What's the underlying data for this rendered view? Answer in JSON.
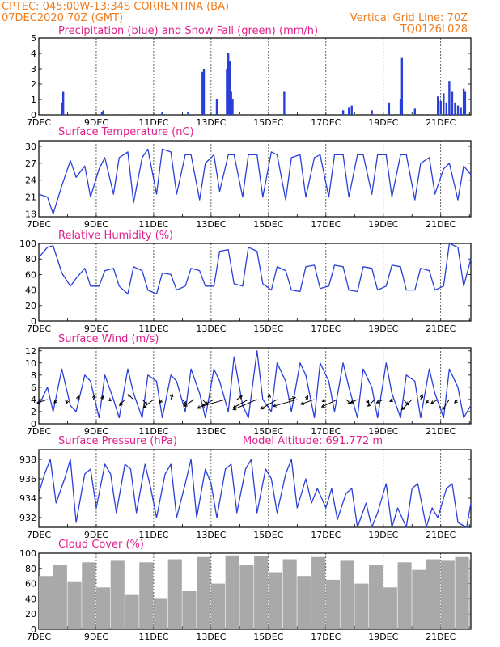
{
  "header": {
    "line1": "CPTEC:   045:00W-13:34S   CORRENTINA (BA)",
    "line2": "07DEC2020 70Z (GMT)",
    "grid_note": "Vertical Grid Line: 70Z",
    "code": "TQ0126L028"
  },
  "colors": {
    "header": "#f07c1e",
    "title": "#e0208c",
    "line": "#2a3fd8",
    "snow": "#22aa22",
    "cloud": "#a9a9a9",
    "axis": "#000000"
  },
  "x_axis": {
    "ticks": [
      {
        "label": "7DEC",
        "day": 7
      },
      {
        "label": "9DEC",
        "day": 9
      },
      {
        "label": "11DEC",
        "day": 11
      },
      {
        "label": "13DEC",
        "day": 13
      },
      {
        "label": "15DEC",
        "day": 15
      },
      {
        "label": "17DEC",
        "day": 17
      },
      {
        "label": "19DEC",
        "day": 19
      },
      {
        "label": "21DEC",
        "day": 21
      }
    ],
    "range": [
      7,
      22.05
    ]
  },
  "chart_data": [
    {
      "type": "bar",
      "title": "Precipitation (blue) and Snow Fall (green) (mm/h)",
      "ylim": [
        0,
        5
      ],
      "yticks": [
        "0",
        "1",
        "2",
        "3",
        "4",
        "5"
      ],
      "series": [
        {
          "name": "Precipitation",
          "x": [
            7.8,
            7.85,
            9.2,
            9.25,
            11.3,
            12.2,
            12.7,
            12.75,
            13.2,
            13.55,
            13.6,
            13.65,
            13.7,
            13.75,
            15.55,
            17.6,
            17.8,
            17.9,
            18.6,
            19.2,
            19.6,
            19.65,
            20.1,
            20.9,
            21.0,
            21.1,
            21.2,
            21.3,
            21.4,
            21.5,
            21.6,
            21.7,
            21.8,
            21.85
          ],
          "values": [
            0.8,
            1.5,
            0.2,
            0.3,
            0.2,
            0.2,
            2.8,
            3.0,
            1.0,
            3.0,
            4.0,
            3.5,
            1.5,
            1.0,
            1.5,
            0.3,
            0.5,
            0.6,
            0.3,
            0.8,
            1.0,
            3.7,
            0.4,
            1.2,
            0.9,
            1.4,
            0.8,
            2.2,
            1.5,
            0.8,
            0.6,
            0.5,
            1.7,
            1.5
          ]
        },
        {
          "name": "Snow Fall",
          "x": [
            7.5,
            8.5,
            10.0,
            11.5,
            14.0,
            16.5,
            18.0,
            20.0,
            21.0
          ],
          "values": [
            0.05,
            0.05,
            0.05,
            0.05,
            0.05,
            0.05,
            0.05,
            0.05,
            0.05
          ]
        }
      ]
    },
    {
      "type": "line",
      "title": "Surface Temperature (nC)",
      "ylim": [
        17.5,
        31
      ],
      "yticks": [
        "18",
        "21",
        "24",
        "27",
        "30"
      ],
      "series": [
        {
          "name": "Temperature",
          "x": [
            7,
            7.3,
            7.5,
            7.8,
            8.1,
            8.3,
            8.6,
            8.8,
            9.1,
            9.3,
            9.6,
            9.8,
            10.1,
            10.3,
            10.6,
            10.8,
            11.1,
            11.3,
            11.6,
            11.8,
            12.1,
            12.3,
            12.6,
            12.8,
            13.1,
            13.3,
            13.6,
            13.8,
            14.1,
            14.3,
            14.6,
            14.8,
            15.1,
            15.3,
            15.6,
            15.8,
            16.1,
            16.3,
            16.6,
            16.8,
            17.1,
            17.3,
            17.6,
            17.8,
            18.1,
            18.3,
            18.6,
            18.8,
            19.1,
            19.3,
            19.6,
            19.8,
            20.1,
            20.3,
            20.6,
            20.8,
            21.1,
            21.3,
            21.6,
            21.8,
            22.05
          ],
          "values": [
            21.5,
            21,
            18,
            23,
            27.5,
            24.5,
            26.5,
            21,
            26,
            28,
            21.5,
            28,
            29,
            20,
            28,
            29.5,
            21.5,
            29.5,
            29,
            21.5,
            28.5,
            28.5,
            20.5,
            27,
            28.5,
            22,
            28.5,
            28.5,
            21,
            28.5,
            28.5,
            21,
            29,
            28.5,
            20.5,
            28,
            28.5,
            21,
            28,
            28.5,
            21,
            28.5,
            28.5,
            21,
            28.5,
            28.5,
            21.5,
            28.5,
            28.5,
            21,
            28.5,
            28.5,
            20.5,
            27,
            28,
            21.5,
            26,
            27,
            20.5,
            26.5,
            25
          ]
        }
      ]
    },
    {
      "type": "line",
      "title": "Relative Humidity (%)",
      "ylim": [
        0,
        100
      ],
      "yticks": [
        "0",
        "20",
        "40",
        "60",
        "80",
        "100"
      ],
      "series": [
        {
          "name": "Relative Humidity",
          "x": [
            7,
            7.3,
            7.5,
            7.8,
            8.1,
            8.3,
            8.6,
            8.8,
            9.1,
            9.3,
            9.6,
            9.8,
            10.1,
            10.3,
            10.6,
            10.8,
            11.1,
            11.3,
            11.6,
            11.8,
            12.1,
            12.3,
            12.6,
            12.8,
            13.1,
            13.3,
            13.6,
            13.8,
            14.1,
            14.3,
            14.6,
            14.8,
            15.1,
            15.3,
            15.6,
            15.8,
            16.1,
            16.3,
            16.6,
            16.8,
            17.1,
            17.3,
            17.6,
            17.8,
            18.1,
            18.3,
            18.6,
            18.8,
            19.1,
            19.3,
            19.6,
            19.8,
            20.1,
            20.3,
            20.6,
            20.8,
            21.1,
            21.3,
            21.6,
            21.8,
            22.05
          ],
          "values": [
            82,
            95,
            97,
            62,
            45,
            55,
            68,
            45,
            45,
            65,
            68,
            45,
            35,
            70,
            65,
            40,
            35,
            62,
            60,
            40,
            45,
            68,
            65,
            45,
            45,
            90,
            92,
            48,
            45,
            95,
            90,
            48,
            40,
            70,
            65,
            40,
            38,
            70,
            72,
            42,
            45,
            72,
            70,
            40,
            38,
            70,
            68,
            40,
            45,
            72,
            70,
            40,
            40,
            68,
            65,
            40,
            45,
            100,
            95,
            45,
            80
          ]
        }
      ]
    },
    {
      "type": "line",
      "title": "Surface Wind (m/s)",
      "ylim": [
        0,
        12.5
      ],
      "yticks": [
        "0",
        "2",
        "4",
        "6",
        "8",
        "10",
        "12"
      ],
      "series": [
        {
          "name": "Wind Speed",
          "x": [
            7,
            7.3,
            7.5,
            7.8,
            8.1,
            8.3,
            8.6,
            8.8,
            9.1,
            9.3,
            9.6,
            9.8,
            10.1,
            10.3,
            10.6,
            10.8,
            11.1,
            11.3,
            11.6,
            11.8,
            12.1,
            12.3,
            12.6,
            12.8,
            13.1,
            13.3,
            13.6,
            13.8,
            14.1,
            14.3,
            14.6,
            14.8,
            15.1,
            15.3,
            15.6,
            15.8,
            16.1,
            16.3,
            16.6,
            16.8,
            17.1,
            17.3,
            17.6,
            17.8,
            18.1,
            18.3,
            18.6,
            18.8,
            19.1,
            19.3,
            19.6,
            19.8,
            20.1,
            20.3,
            20.6,
            20.8,
            21.1,
            21.3,
            21.6,
            21.8,
            22.05
          ],
          "values": [
            3,
            6,
            2,
            9,
            3,
            2,
            8,
            7,
            1,
            8,
            4,
            1,
            9,
            5,
            1,
            8,
            7,
            1,
            8,
            7,
            2,
            9,
            5,
            1,
            9,
            7,
            2,
            11,
            3,
            1,
            12,
            4,
            2,
            10,
            7,
            2,
            10,
            8,
            1,
            10,
            7,
            2,
            10,
            6,
            1,
            9,
            6,
            1,
            10,
            5,
            1,
            8,
            7,
            1,
            9,
            5,
            1,
            9,
            6,
            1,
            3
          ]
        }
      ],
      "wind_vectors": {
        "x": [
          7.3,
          7.65,
          8.0,
          8.35,
          8.9,
          9.2,
          9.45,
          10.0,
          10.3,
          10.6,
          11.0,
          11.3,
          11.6,
          12.0,
          12.4,
          12.7,
          13.1,
          13.5,
          13.9,
          14.3,
          14.6,
          15.0,
          15.3,
          15.7,
          16.0,
          16.3,
          16.6,
          17.0,
          17.4,
          17.7,
          18.1,
          18.4,
          18.7,
          19.0,
          19.35,
          19.7,
          20.0,
          20.3,
          20.6,
          20.9,
          21.3,
          21.6
        ],
        "u": [
          -3,
          -1,
          -0.4,
          0.3,
          0.4,
          0.3,
          0.5,
          -1.6,
          -1.6,
          1.4,
          -3,
          -0.8,
          0.4,
          1.2,
          -2.8,
          1.4,
          -4.8,
          -7,
          1.5,
          -4.4,
          -7,
          0.4,
          -4.8,
          2,
          -7,
          0.6,
          -4,
          -1,
          -4.6,
          1.4,
          -2,
          0.8,
          -2,
          -2,
          -1,
          1.4,
          -3,
          0.5,
          -1,
          -2,
          -2,
          -1
        ],
        "v": [
          -1,
          -1,
          -1.2,
          1,
          1.2,
          1,
          -0.4,
          -1.8,
          1.4,
          -1.4,
          -2.4,
          -1,
          1.6,
          -1.4,
          -2,
          -1.6,
          -2.6,
          -2,
          1,
          -2.4,
          -3,
          1.4,
          -2.8,
          0.6,
          -2,
          1,
          -1.4,
          -0.6,
          -2.2,
          -1.2,
          -1,
          -1,
          -2,
          -1,
          -0.6,
          -1.6,
          -3,
          1.4,
          -1,
          -1.2,
          -3,
          -1
        ]
      }
    },
    {
      "type": "line",
      "title": "Surface Pressure (hPa)",
      "annotation": "Model Altitude: 691.772 m",
      "ylim": [
        931,
        939
      ],
      "yticks": [
        "932",
        "934",
        "936",
        "938"
      ],
      "series": [
        {
          "name": "Surface Pressure",
          "x": [
            7,
            7.2,
            7.4,
            7.6,
            7.9,
            8.1,
            8.3,
            8.6,
            8.8,
            9.0,
            9.3,
            9.5,
            9.7,
            10.0,
            10.2,
            10.4,
            10.7,
            10.9,
            11.1,
            11.4,
            11.6,
            11.8,
            12.1,
            12.3,
            12.5,
            12.8,
            13.0,
            13.2,
            13.5,
            13.7,
            13.9,
            14.2,
            14.4,
            14.6,
            14.9,
            15.1,
            15.3,
            15.6,
            15.8,
            16.0,
            16.3,
            16.5,
            16.7,
            17.0,
            17.2,
            17.4,
            17.7,
            17.9,
            18.1,
            18.4,
            18.6,
            18.8,
            19.1,
            19.3,
            19.5,
            19.8,
            20.0,
            20.2,
            20.5,
            20.7,
            20.9,
            21.2,
            21.4,
            21.6,
            21.9,
            22.05
          ],
          "values": [
            934.5,
            936.5,
            938,
            933.5,
            936,
            938,
            931.5,
            936.5,
            937,
            933,
            937.5,
            936.5,
            932.5,
            937.5,
            937,
            932.5,
            937.5,
            935,
            932,
            936.5,
            937.5,
            932,
            935.5,
            938,
            932,
            937,
            935.5,
            932,
            937,
            937.5,
            932.5,
            937,
            938,
            932.5,
            937,
            936,
            932.5,
            936.5,
            938,
            933,
            936,
            933.5,
            935,
            933,
            935,
            931.8,
            934.5,
            935,
            931,
            933.5,
            931,
            932.5,
            935.5,
            931,
            933,
            931,
            935,
            935.5,
            931,
            933,
            932,
            935,
            935.5,
            931.5,
            931,
            933.5
          ]
        }
      ]
    },
    {
      "type": "bar",
      "title": "Cloud Cover (%)",
      "ylim": [
        0,
        100
      ],
      "yticks": [
        "0",
        "20",
        "40",
        "60",
        "80",
        "100"
      ],
      "series": [
        {
          "name": "Cloud Cover",
          "x": [
            7.0,
            7.5,
            8.0,
            8.5,
            9.0,
            9.5,
            10.0,
            10.5,
            11.0,
            11.5,
            12.0,
            12.5,
            13.0,
            13.5,
            14.0,
            14.5,
            15.0,
            15.5,
            16.0,
            16.5,
            17.0,
            17.5,
            18.0,
            18.5,
            19.0,
            19.5,
            20.0,
            20.5,
            21.0,
            21.5,
            22.0
          ],
          "values": [
            70,
            85,
            62,
            88,
            55,
            90,
            45,
            88,
            40,
            92,
            50,
            95,
            60,
            97,
            85,
            96,
            75,
            92,
            70,
            95,
            65,
            90,
            60,
            85,
            55,
            88,
            78,
            92,
            90,
            95,
            92
          ]
        }
      ]
    }
  ]
}
